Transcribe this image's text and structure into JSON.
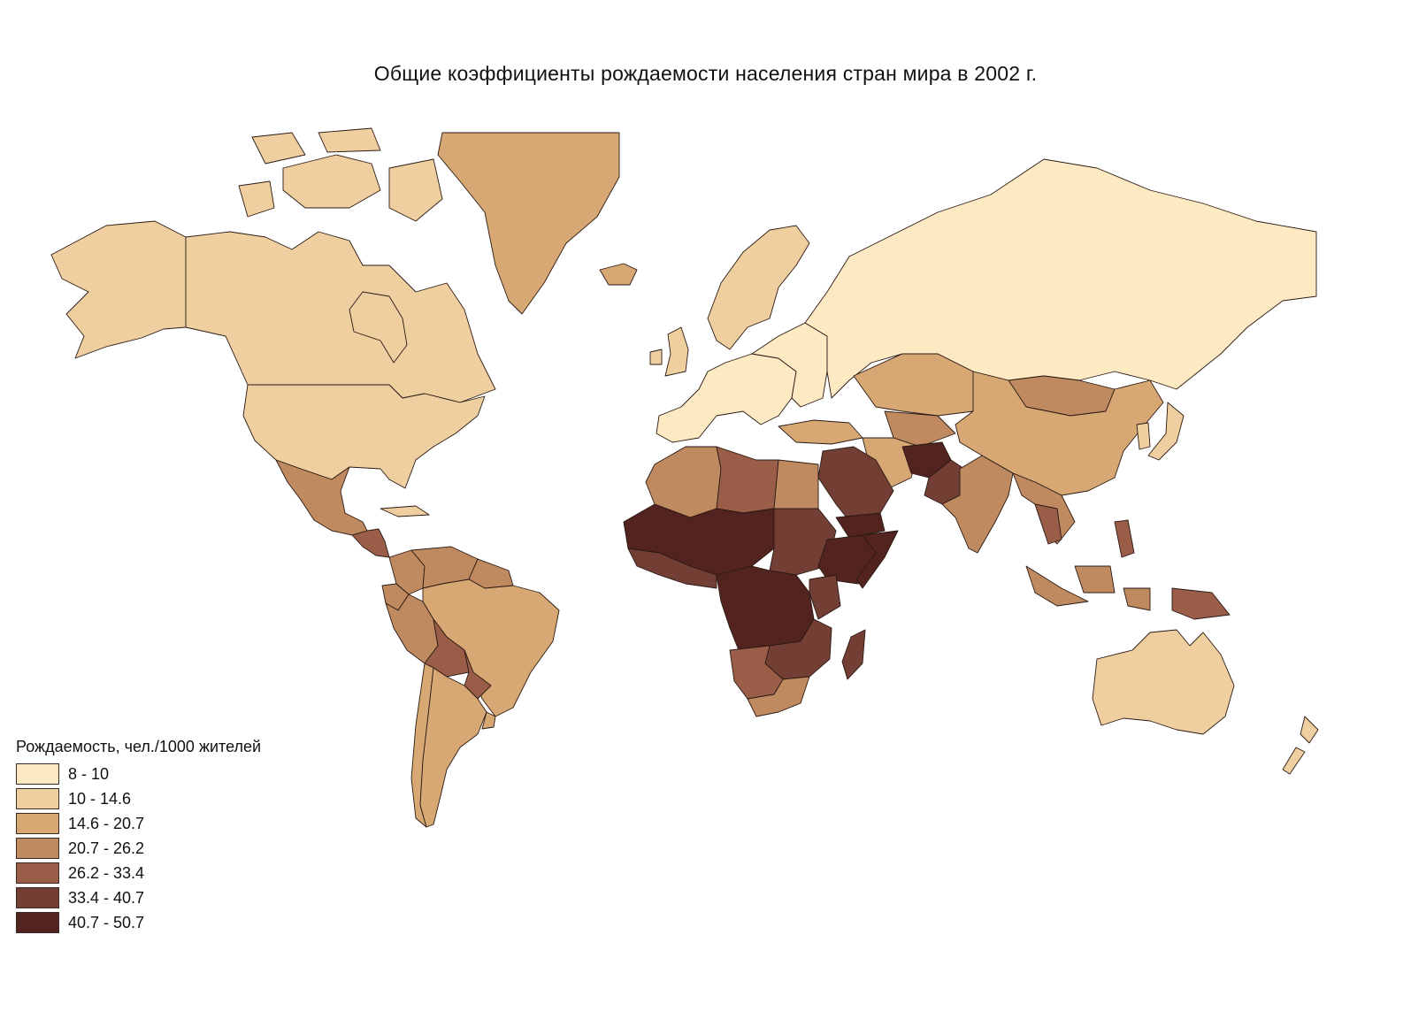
{
  "title": "Общие коэффициенты рождаемости населения стран мира в 2002 г.",
  "legend": {
    "title": "Рождаемость, чел./1000 жителей",
    "classes": [
      {
        "label": "8 - 10",
        "color": "#fde9c2"
      },
      {
        "label": "10 - 14.6",
        "color": "#efcfa0"
      },
      {
        "label": "14.6 - 20.7",
        "color": "#d8a874"
      },
      {
        "label": "20.7 - 26.2",
        "color": "#c08a60"
      },
      {
        "label": "26.2 - 33.4",
        "color": "#9a5e48"
      },
      {
        "label": "33.4 - 40.7",
        "color": "#733e34"
      },
      {
        "label": "40.7 - 50.7",
        "color": "#52231f"
      }
    ]
  },
  "regions": [
    {
      "name": "canada",
      "class": 1
    },
    {
      "name": "alaska",
      "class": 1
    },
    {
      "name": "usa",
      "class": 1
    },
    {
      "name": "arctic-islands",
      "class": 1
    },
    {
      "name": "greenland",
      "class": 2
    },
    {
      "name": "iceland",
      "class": 2
    },
    {
      "name": "mexico",
      "class": 3
    },
    {
      "name": "central-america",
      "class": 4
    },
    {
      "name": "cuba",
      "class": 1
    },
    {
      "name": "colombia",
      "class": 3
    },
    {
      "name": "venezuela",
      "class": 3
    },
    {
      "name": "guianas",
      "class": 3
    },
    {
      "name": "ecuador",
      "class": 3
    },
    {
      "name": "peru",
      "class": 3
    },
    {
      "name": "brazil",
      "class": 2
    },
    {
      "name": "bolivia",
      "class": 4
    },
    {
      "name": "paraguay",
      "class": 4
    },
    {
      "name": "chile",
      "class": 2
    },
    {
      "name": "argentina",
      "class": 2
    },
    {
      "name": "uruguay",
      "class": 2
    },
    {
      "name": "europe-west",
      "class": 0
    },
    {
      "name": "scandinavia",
      "class": 1
    },
    {
      "name": "uk",
      "class": 1
    },
    {
      "name": "europe-east",
      "class": 0
    },
    {
      "name": "russia",
      "class": 0
    },
    {
      "name": "turkey",
      "class": 2
    },
    {
      "name": "kazakhstan",
      "class": 2
    },
    {
      "name": "central-asia",
      "class": 3
    },
    {
      "name": "mongolia",
      "class": 3
    },
    {
      "name": "china",
      "class": 2
    },
    {
      "name": "korea-japan",
      "class": 1
    },
    {
      "name": "iran",
      "class": 2
    },
    {
      "name": "afghanistan",
      "class": 6
    },
    {
      "name": "pakistan",
      "class": 5
    },
    {
      "name": "india",
      "class": 3
    },
    {
      "name": "southeast-asia",
      "class": 3
    },
    {
      "name": "laos-cambodia",
      "class": 4
    },
    {
      "name": "indonesia",
      "class": 3
    },
    {
      "name": "philippines",
      "class": 4
    },
    {
      "name": "png",
      "class": 4
    },
    {
      "name": "arabia",
      "class": 5
    },
    {
      "name": "yemen",
      "class": 6
    },
    {
      "name": "north-africa",
      "class": 3
    },
    {
      "name": "libya",
      "class": 4
    },
    {
      "name": "egypt",
      "class": 3
    },
    {
      "name": "sudan",
      "class": 5
    },
    {
      "name": "ethiopia",
      "class": 6
    },
    {
      "name": "somalia",
      "class": 6
    },
    {
      "name": "kenya",
      "class": 5
    },
    {
      "name": "sahel",
      "class": 6
    },
    {
      "name": "west-africa-coast",
      "class": 5
    },
    {
      "name": "central-africa",
      "class": 6
    },
    {
      "name": "southern-africa-mid",
      "class": 5
    },
    {
      "name": "namibia-botswana",
      "class": 4
    },
    {
      "name": "south-africa",
      "class": 3
    },
    {
      "name": "madagascar",
      "class": 5
    },
    {
      "name": "australia",
      "class": 1
    },
    {
      "name": "new-zealand",
      "class": 1
    }
  ]
}
